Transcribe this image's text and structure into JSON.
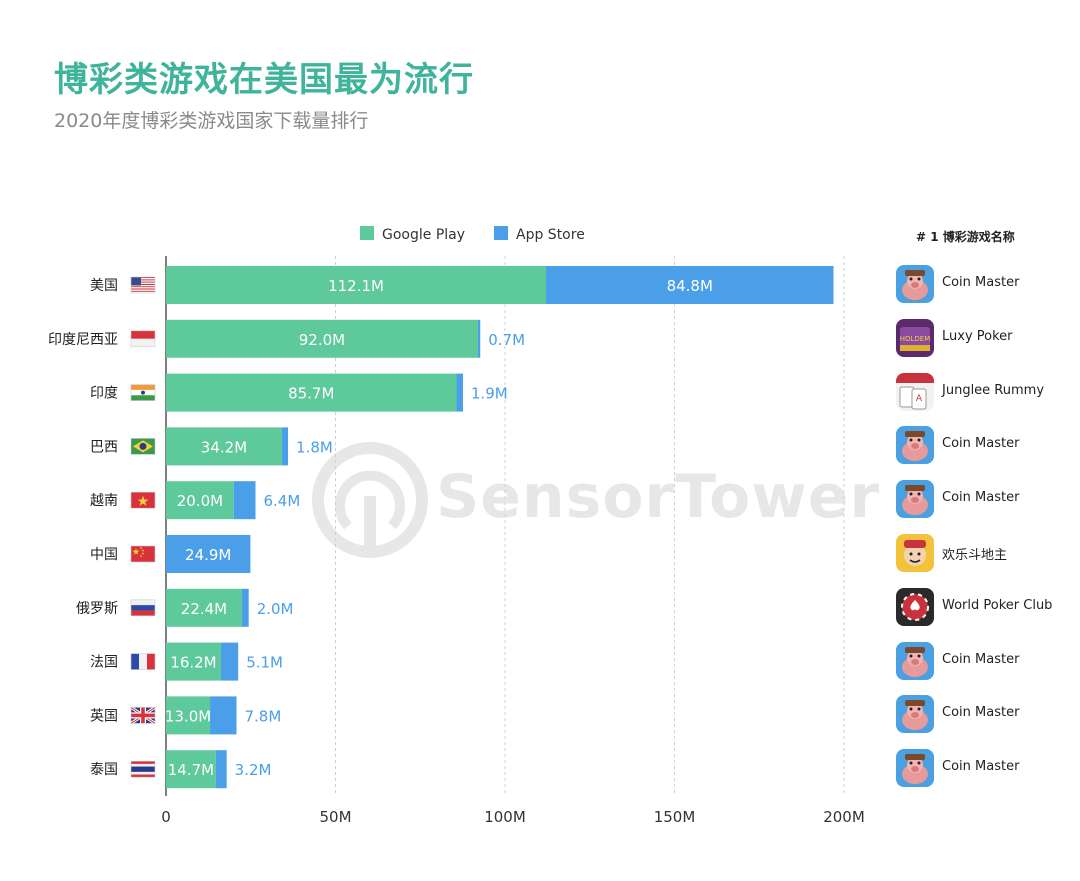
{
  "title": "博彩类游戏在美国最为流行",
  "subtitle": "2020年度博彩类游戏国家下载量排行",
  "watermark": "SensorTower",
  "side_header": "# 1 博彩游戏名称",
  "colors": {
    "google_play": "#5ec99a",
    "app_store": "#4a9fe8",
    "title": "#3fb49a"
  },
  "top_games": [
    {
      "name": "Coin Master",
      "icon": "coin-master-icon"
    },
    {
      "name": "Luxy Poker",
      "icon": "luxy-poker-icon"
    },
    {
      "name": "Junglee Rummy",
      "icon": "junglee-rummy-icon"
    },
    {
      "name": "Coin Master",
      "icon": "coin-master-icon"
    },
    {
      "name": "Coin Master",
      "icon": "coin-master-icon"
    },
    {
      "name": "欢乐斗地主",
      "icon": "huanle-doudizhu-icon"
    },
    {
      "name": "World Poker Club",
      "icon": "world-poker-club-icon"
    },
    {
      "name": "Coin Master",
      "icon": "coin-master-icon"
    },
    {
      "name": "Coin Master",
      "icon": "coin-master-icon"
    },
    {
      "name": "Coin Master",
      "icon": "coin-master-icon"
    }
  ],
  "chart_data": {
    "type": "bar",
    "orientation": "horizontal",
    "stacked": true,
    "title": "博彩类游戏在美国最为流行",
    "subtitle": "2020年度博彩类游戏国家下载量排行",
    "categories": [
      "美国",
      "印度尼西亚",
      "印度",
      "巴西",
      "越南",
      "中国",
      "俄罗斯",
      "法国",
      "英国",
      "泰国"
    ],
    "flags": [
      "us-flag-icon",
      "indonesia-flag-icon",
      "india-flag-icon",
      "brazil-flag-icon",
      "vietnam-flag-icon",
      "china-flag-icon",
      "russia-flag-icon",
      "france-flag-icon",
      "uk-flag-icon",
      "thailand-flag-icon"
    ],
    "series": [
      {
        "name": "Google Play",
        "color": "#5ec99a",
        "values": [
          112.1,
          92.0,
          85.7,
          34.2,
          20.0,
          0,
          22.4,
          16.2,
          13.0,
          14.7
        ],
        "labels": [
          "112.1M",
          "92.0M",
          "85.7M",
          "34.2M",
          "20.0M",
          "",
          "22.4M",
          "16.2M",
          "13.0M",
          "14.7M"
        ]
      },
      {
        "name": "App Store",
        "color": "#4a9fe8",
        "values": [
          84.8,
          0.7,
          1.9,
          1.8,
          6.4,
          24.9,
          2.0,
          5.1,
          7.8,
          3.2
        ],
        "labels": [
          "84.8M",
          "0.7M",
          "1.9M",
          "1.8M",
          "6.4M",
          "24.9M",
          "2.0M",
          "5.1M",
          "7.8M",
          "3.2M"
        ]
      }
    ],
    "x_ticks": [
      0,
      50,
      100,
      150,
      200
    ],
    "x_tick_labels": [
      "0",
      "50M",
      "100M",
      "150M",
      "200M"
    ],
    "xlim": [
      0,
      200
    ],
    "grid": "vertical dashed",
    "legend": "top-center"
  }
}
